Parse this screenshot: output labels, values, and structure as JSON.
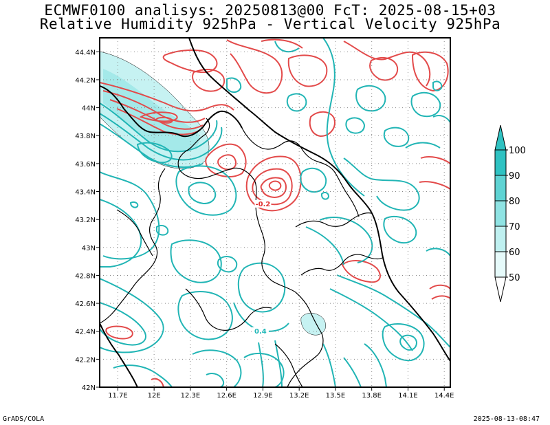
{
  "title": {
    "line1": "ECMWF0100 analisys: 20250813@00 FcT: 2025-08-15+03",
    "line2": "Relative Humidity 925hPa - Vertical Velocity 925hPa"
  },
  "footer": {
    "left": "GrADS/COLA",
    "right": "2025-08-13-08:47"
  },
  "map": {
    "lon_ticks": [
      "11.7E",
      "12E",
      "12.3E",
      "12.6E",
      "12.9E",
      "13.2E",
      "13.5E",
      "13.8E",
      "14.1E",
      "14.4E"
    ],
    "lat_ticks": [
      "42N",
      "42.2N",
      "42.4N",
      "42.6N",
      "42.8N",
      "43N",
      "43.2N",
      "43.4N",
      "43.6N",
      "43.8N",
      "44N",
      "44.2N",
      "44.4N"
    ],
    "contour_labels": [
      {
        "text": "-0.2",
        "lon": 12.9,
        "lat": 43.3,
        "color": "#e03030"
      },
      {
        "text": "0.4",
        "lon": 12.88,
        "lat": 42.39,
        "color": "#20b8b8"
      }
    ],
    "colors": {
      "positive_contour": "#e34a4a",
      "negative_contour": "#21b5b5",
      "coast": "#000000",
      "grid": "#888888"
    }
  },
  "colorbar": {
    "levels": [
      "50",
      "60",
      "70",
      "80",
      "90",
      "100"
    ],
    "colors": [
      "#e6fafa",
      "#bff0f0",
      "#8fe3e3",
      "#5fd3d3",
      "#2fc2c2"
    ]
  }
}
